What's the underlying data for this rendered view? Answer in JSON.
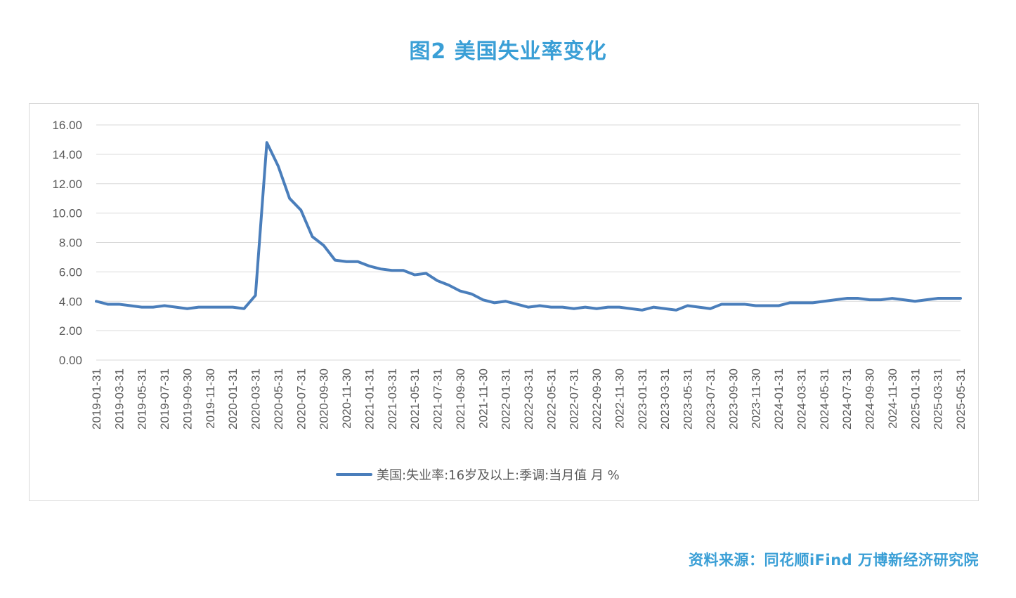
{
  "title": "图2 美国失业率变化",
  "source": "资料来源：同花顺iFind 万博新经济研究院",
  "colors": {
    "accent": "#3a9fd6",
    "line": "#4a7ebb",
    "grid": "#d9d9d9",
    "text": "#595959"
  },
  "chart_data": {
    "type": "line",
    "title": "",
    "xlabel": "",
    "ylabel": "",
    "ylim": [
      0,
      16
    ],
    "y_ticks": [
      "0.00",
      "2.00",
      "4.00",
      "6.00",
      "8.00",
      "10.00",
      "12.00",
      "14.00",
      "16.00"
    ],
    "grid": "horizontal",
    "legend_position": "bottom",
    "x_tick_labels": [
      "2019-01-31",
      "2019-03-31",
      "2019-05-31",
      "2019-07-31",
      "2019-09-30",
      "2019-11-30",
      "2020-01-31",
      "2020-03-31",
      "2020-05-31",
      "2020-07-31",
      "2020-09-30",
      "2020-11-30",
      "2021-01-31",
      "2021-03-31",
      "2021-05-31",
      "2021-07-31",
      "2021-09-30",
      "2021-11-30",
      "2022-01-31",
      "2022-03-31",
      "2022-05-31",
      "2022-07-31",
      "2022-09-30",
      "2022-11-30",
      "2023-01-31",
      "2023-03-31",
      "2023-05-31",
      "2023-07-31",
      "2023-09-30",
      "2023-11-30",
      "2024-01-31",
      "2024-03-31",
      "2024-05-31",
      "2024-07-31",
      "2024-09-30",
      "2024-11-30",
      "2025-01-31",
      "2025-03-31",
      "2025-05-31"
    ],
    "x": [
      "2019-01-31",
      "2019-02-28",
      "2019-03-31",
      "2019-04-30",
      "2019-05-31",
      "2019-06-30",
      "2019-07-31",
      "2019-08-31",
      "2019-09-30",
      "2019-10-31",
      "2019-11-30",
      "2019-12-31",
      "2020-01-31",
      "2020-02-29",
      "2020-03-31",
      "2020-04-30",
      "2020-05-31",
      "2020-06-30",
      "2020-07-31",
      "2020-08-31",
      "2020-09-30",
      "2020-10-31",
      "2020-11-30",
      "2020-12-31",
      "2021-01-31",
      "2021-02-28",
      "2021-03-31",
      "2021-04-30",
      "2021-05-31",
      "2021-06-30",
      "2021-07-31",
      "2021-08-31",
      "2021-09-30",
      "2021-10-31",
      "2021-11-30",
      "2021-12-31",
      "2022-01-31",
      "2022-02-28",
      "2022-03-31",
      "2022-04-30",
      "2022-05-31",
      "2022-06-30",
      "2022-07-31",
      "2022-08-31",
      "2022-09-30",
      "2022-10-31",
      "2022-11-30",
      "2022-12-31",
      "2023-01-31",
      "2023-02-28",
      "2023-03-31",
      "2023-04-30",
      "2023-05-31",
      "2023-06-30",
      "2023-07-31",
      "2023-08-31",
      "2023-09-30",
      "2023-10-31",
      "2023-11-30",
      "2023-12-31",
      "2024-01-31",
      "2024-02-29",
      "2024-03-31",
      "2024-04-30",
      "2024-05-31",
      "2024-06-30",
      "2024-07-31",
      "2024-08-31",
      "2024-09-30",
      "2024-10-31",
      "2024-11-30",
      "2024-12-31",
      "2025-01-31",
      "2025-02-28",
      "2025-03-31",
      "2025-04-30",
      "2025-05-31"
    ],
    "series": [
      {
        "name": "美国:失业率:16岁及以上:季调:当月值 月 %",
        "values": [
          4.0,
          3.8,
          3.8,
          3.7,
          3.6,
          3.6,
          3.7,
          3.6,
          3.5,
          3.6,
          3.6,
          3.6,
          3.6,
          3.5,
          4.4,
          14.8,
          13.2,
          11.0,
          10.2,
          8.4,
          7.8,
          6.8,
          6.7,
          6.7,
          6.4,
          6.2,
          6.1,
          6.1,
          5.8,
          5.9,
          5.4,
          5.1,
          4.7,
          4.5,
          4.1,
          3.9,
          4.0,
          3.8,
          3.6,
          3.7,
          3.6,
          3.6,
          3.5,
          3.6,
          3.5,
          3.6,
          3.6,
          3.5,
          3.4,
          3.6,
          3.5,
          3.4,
          3.7,
          3.6,
          3.5,
          3.8,
          3.8,
          3.8,
          3.7,
          3.7,
          3.7,
          3.9,
          3.9,
          3.9,
          4.0,
          4.1,
          4.2,
          4.2,
          4.1,
          4.1,
          4.2,
          4.1,
          4.0,
          4.1,
          4.2,
          4.2,
          4.2
        ]
      }
    ]
  }
}
